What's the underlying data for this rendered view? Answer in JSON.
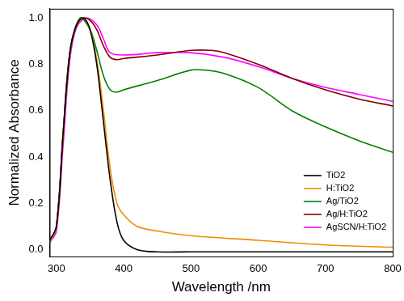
{
  "chart_data": {
    "type": "line",
    "x_label": "Wavelength /nm",
    "y_label": "Normalized Absorbance",
    "xlim": [
      290,
      800
    ],
    "xticks": [
      300,
      400,
      500,
      600,
      700,
      800
    ],
    "ylim": [
      -0.03,
      1.04
    ],
    "yticks": [
      {
        "value": 0.0,
        "label": "0.0"
      },
      {
        "value": 0.2,
        "label": "0.2"
      },
      {
        "value": 0.4,
        "label": "0.4"
      },
      {
        "value": 0.6,
        "label": "0.6"
      },
      {
        "value": 0.8,
        "label": "0.8"
      },
      {
        "value": 1.0,
        "label": "1.0"
      }
    ],
    "grid": false,
    "legend": "lower right",
    "series": [
      {
        "name": "TiO2",
        "color": "#000000",
        "x": [
          290,
          300,
          310,
          320,
          330,
          340,
          350,
          360,
          370,
          380,
          390,
          400,
          420,
          450,
          500,
          600,
          700,
          800
        ],
        "values": [
          0.04,
          0.1,
          0.5,
          0.85,
          0.97,
          1.0,
          0.95,
          0.8,
          0.55,
          0.3,
          0.12,
          0.04,
          0.0,
          -0.01,
          -0.01,
          -0.01,
          -0.01,
          -0.01
        ]
      },
      {
        "name": "H:TiO2",
        "color": "#f28c00",
        "x": [
          290,
          300,
          310,
          320,
          330,
          340,
          350,
          360,
          370,
          380,
          390,
          400,
          420,
          450,
          500,
          600,
          700,
          800
        ],
        "values": [
          0.03,
          0.1,
          0.5,
          0.85,
          0.97,
          1.0,
          0.95,
          0.82,
          0.6,
          0.35,
          0.2,
          0.15,
          0.1,
          0.08,
          0.06,
          0.04,
          0.02,
          0.01
        ]
      },
      {
        "name": "Ag/TiO2",
        "color": "#008000",
        "x": [
          290,
          300,
          310,
          320,
          335,
          350,
          360,
          370,
          380,
          390,
          400,
          450,
          500,
          520,
          550,
          600,
          650,
          700,
          750,
          800
        ],
        "values": [
          0.03,
          0.1,
          0.5,
          0.85,
          1.0,
          0.95,
          0.86,
          0.75,
          0.69,
          0.68,
          0.69,
          0.73,
          0.775,
          0.775,
          0.76,
          0.7,
          0.6,
          0.53,
          0.47,
          0.42
        ]
      },
      {
        "name": "Ag/H:TiO2",
        "color": "#800000",
        "x": [
          290,
          300,
          310,
          320,
          330,
          340,
          350,
          360,
          370,
          380,
          390,
          400,
          450,
          500,
          530,
          550,
          600,
          650,
          700,
          750,
          800
        ],
        "values": [
          0.03,
          0.1,
          0.5,
          0.85,
          0.97,
          1.0,
          0.99,
          0.95,
          0.88,
          0.83,
          0.82,
          0.825,
          0.84,
          0.86,
          0.86,
          0.85,
          0.8,
          0.74,
          0.69,
          0.65,
          0.62
        ]
      },
      {
        "name": "AgSCN/H:TiO2",
        "color": "#ff00ff",
        "x": [
          290,
          300,
          310,
          320,
          330,
          345,
          360,
          370,
          380,
          400,
          450,
          500,
          550,
          600,
          650,
          700,
          750,
          800
        ],
        "values": [
          0.03,
          0.08,
          0.45,
          0.82,
          0.96,
          1.0,
          0.97,
          0.91,
          0.85,
          0.84,
          0.85,
          0.85,
          0.83,
          0.79,
          0.74,
          0.7,
          0.67,
          0.64
        ]
      }
    ]
  }
}
